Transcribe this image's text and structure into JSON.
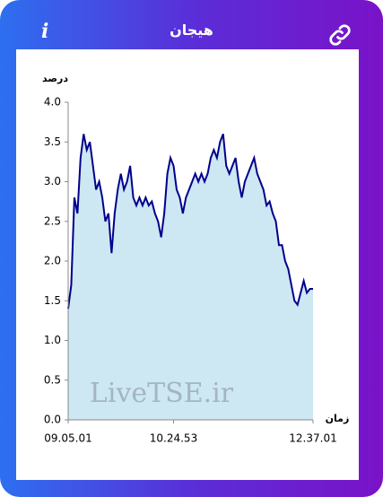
{
  "header": {
    "title": "هیجان",
    "info": "i"
  },
  "chart_data": {
    "type": "area",
    "y_label": "درصد",
    "x_label": "زمان",
    "watermark": "LiveTSE.ir",
    "categories": [
      "09.05.01",
      null,
      null,
      null,
      null,
      null,
      null,
      null,
      null,
      null,
      null,
      null,
      null,
      null,
      null,
      null,
      null,
      null,
      null,
      null,
      null,
      null,
      null,
      null,
      null,
      null,
      null,
      null,
      null,
      null,
      null,
      null,
      null,
      null,
      "10.24.53",
      null,
      null,
      null,
      null,
      null,
      null,
      null,
      null,
      null,
      null,
      null,
      null,
      null,
      null,
      null,
      null,
      null,
      null,
      null,
      null,
      null,
      null,
      null,
      null,
      null,
      null,
      null,
      null,
      null,
      null,
      null,
      null,
      null,
      null,
      null,
      null,
      null,
      null,
      null,
      null,
      null,
      null,
      null,
      null,
      "12.37.01"
    ],
    "values": [
      1.4,
      1.7,
      2.8,
      2.6,
      3.3,
      3.6,
      3.4,
      3.5,
      3.2,
      2.9,
      3.0,
      2.8,
      2.5,
      2.6,
      2.1,
      2.6,
      2.9,
      3.1,
      2.9,
      3.0,
      3.2,
      2.8,
      2.7,
      2.8,
      2.7,
      2.8,
      2.7,
      2.75,
      2.6,
      2.5,
      2.3,
      2.6,
      3.1,
      3.3,
      3.2,
      2.9,
      2.8,
      2.6,
      2.8,
      2.9,
      3.0,
      3.1,
      3.0,
      3.1,
      3.0,
      3.1,
      3.3,
      3.4,
      3.3,
      3.5,
      3.6,
      3.2,
      3.1,
      3.2,
      3.3,
      3.0,
      2.8,
      3.0,
      3.1,
      3.2,
      3.3,
      3.1,
      3.0,
      2.9,
      2.7,
      2.75,
      2.6,
      2.5,
      2.2,
      2.2,
      2.0,
      1.9,
      1.7,
      1.5,
      1.45,
      1.6,
      1.75,
      1.6,
      1.65,
      1.65
    ],
    "color": "#00008b",
    "fill": "#cde7f3",
    "ylim": [
      0,
      4
    ],
    "yticks": [
      {
        "value": 0,
        "label": "0.0"
      },
      0.5,
      {
        "value": 1,
        "label": "1.0"
      },
      1.5,
      {
        "value": 2,
        "label": "2.0"
      },
      2.5,
      {
        "value": 3,
        "label": "3.0"
      },
      3.5,
      {
        "value": 4,
        "label": "4.0"
      }
    ],
    "grid": false
  }
}
